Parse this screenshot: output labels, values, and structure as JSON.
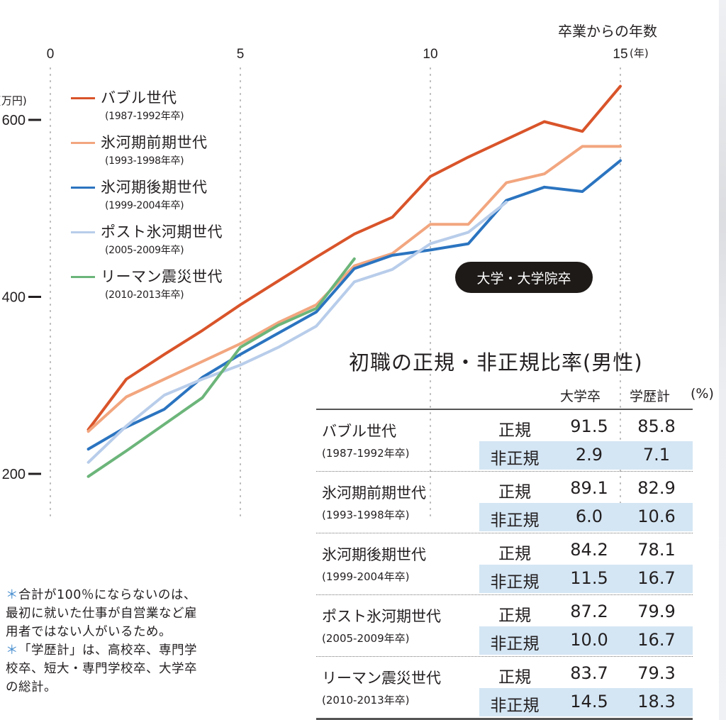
{
  "chart_data": {
    "type": "line",
    "title": "",
    "xlabel": "卒業からの年数",
    "x_unit": "(年)",
    "ylabel": "(万円)",
    "xlim": [
      0,
      15
    ],
    "ylim": [
      200,
      600
    ],
    "x_ticks": [
      0,
      5,
      10,
      15
    ],
    "x_tick_labels": [
      "0",
      "5",
      "10",
      "15"
    ],
    "y_ticks": [
      200,
      400,
      600
    ],
    "y_tick_labels": [
      "200",
      "400",
      "600"
    ],
    "grid": "vertical dotted at x ticks",
    "legend_position": "top-left",
    "annotation": "大学・大学院卒",
    "series": [
      {
        "name": "バブル世代",
        "years": "(1987-1992年卒)",
        "color": "#d9542a",
        "x": [
          1,
          2,
          3,
          4,
          5,
          6,
          7,
          8,
          9,
          10,
          11,
          12,
          13,
          14,
          15
        ],
        "values": [
          250,
          307,
          335,
          362,
          391,
          418,
          445,
          471,
          490,
          536,
          558,
          578,
          598,
          587,
          638
        ]
      },
      {
        "name": "氷河期前期世代",
        "years": "(1993-1998年卒)",
        "color": "#f2a67f",
        "x": [
          1,
          2,
          3,
          4,
          5,
          6,
          7,
          8,
          9,
          10,
          11,
          12,
          13,
          14,
          15
        ],
        "values": [
          248,
          287,
          307,
          327,
          347,
          371,
          391,
          435,
          449,
          482,
          482,
          529,
          539,
          570,
          570
        ]
      },
      {
        "name": "氷河期後期世代",
        "years": "(1999-2004年卒)",
        "color": "#2b74c0",
        "x": [
          1,
          2,
          3,
          4,
          5,
          6,
          7,
          8,
          9,
          10,
          11,
          12,
          13,
          14,
          15
        ],
        "values": [
          228,
          253,
          273,
          309,
          335,
          359,
          383,
          432,
          447,
          453,
          460,
          509,
          524,
          519,
          554
        ]
      },
      {
        "name": "ポスト氷河期世代",
        "years": "(2005-2009年卒)",
        "color": "#b8cdea",
        "x": [
          1,
          2,
          3,
          4,
          5,
          6,
          7,
          8,
          9,
          10,
          11,
          12
        ],
        "values": [
          213,
          254,
          289,
          307,
          323,
          343,
          367,
          417,
          431,
          460,
          473,
          507
        ]
      },
      {
        "name": "リーマン震災世代",
        "years": "(2010-2013年卒)",
        "color": "#6cb57a",
        "x": [
          1,
          2,
          3,
          4,
          5,
          6,
          7,
          8
        ],
        "values": [
          197,
          226,
          256,
          286,
          343,
          368,
          387,
          443
        ]
      }
    ]
  },
  "table": {
    "title": "初職の正規・非正規比率(男性)",
    "columns": [
      "大学卒",
      "学歴計",
      "(%)"
    ],
    "rows": [
      {
        "name": "バブル世代",
        "years": "(1987-1992年卒)",
        "regular": {
          "label": "正規",
          "univ": "91.5",
          "all": "85.8"
        },
        "nonregular": {
          "label": "非正規",
          "univ": "2.9",
          "all": "7.1"
        }
      },
      {
        "name": "氷河期前期世代",
        "years": "(1993-1998年卒)",
        "regular": {
          "label": "正規",
          "univ": "89.1",
          "all": "82.9"
        },
        "nonregular": {
          "label": "非正規",
          "univ": "6.0",
          "all": "10.6"
        }
      },
      {
        "name": "氷河期後期世代",
        "years": "(1999-2004年卒)",
        "regular": {
          "label": "正規",
          "univ": "84.2",
          "all": "78.1"
        },
        "nonregular": {
          "label": "非正規",
          "univ": "11.5",
          "all": "16.7"
        }
      },
      {
        "name": "ポスト氷河期世代",
        "years": "(2005-2009年卒)",
        "regular": {
          "label": "正規",
          "univ": "87.2",
          "all": "79.9"
        },
        "nonregular": {
          "label": "非正規",
          "univ": "10.0",
          "all": "16.7"
        }
      },
      {
        "name": "リーマン震災世代",
        "years": "(2010-2013年卒)",
        "regular": {
          "label": "正規",
          "univ": "83.7",
          "all": "79.3"
        },
        "nonregular": {
          "label": "非正規",
          "univ": "14.5",
          "all": "18.3"
        }
      }
    ]
  },
  "notes": {
    "star": "＊",
    "lines": [
      "合計が100％にならないのは、",
      "最初に就いた仕事が自営業など雇",
      "用者ではない人がいるため。",
      "「学歴計」は、高校卒、専門学",
      "校卒、短大・専門学校卒、大学卒",
      "の総計。"
    ]
  }
}
